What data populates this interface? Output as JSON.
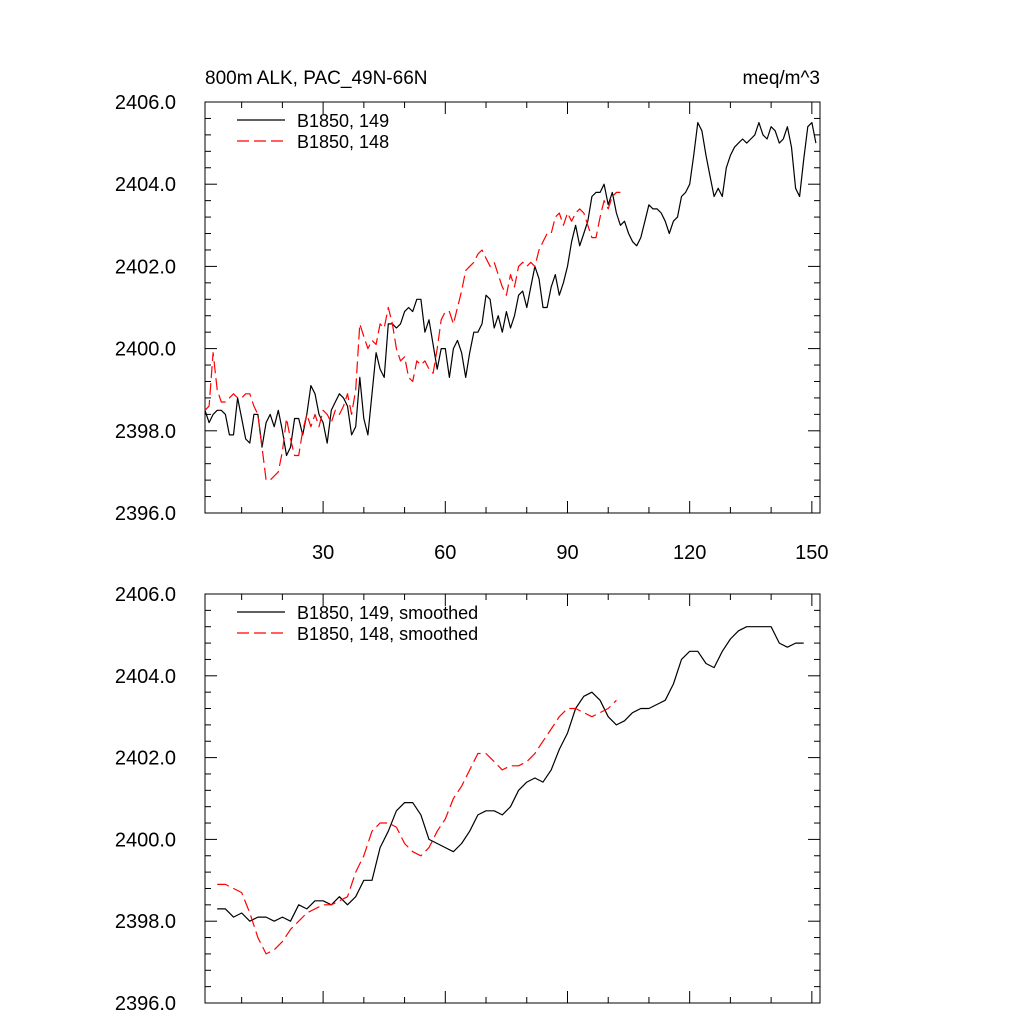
{
  "chart_data": [
    {
      "type": "line",
      "title": "800m ALK, PAC_49N-66N",
      "units": "meq/m^3",
      "xlim": [
        1,
        152
      ],
      "ylim": [
        2396.0,
        2406.0
      ],
      "xticks": [
        30,
        60,
        90,
        120,
        150
      ],
      "xtick_labels": [
        "30",
        "60",
        "90",
        "120",
        "150"
      ],
      "yticks": [
        2396,
        2398,
        2400,
        2402,
        2404,
        2406
      ],
      "ytick_labels": [
        "2396.0",
        "2398.0",
        "2400.0",
        "2402.0",
        "2404.0",
        "2406.0"
      ],
      "legend_position": "top-left",
      "series": [
        {
          "name": "B1850, 149",
          "color": "#000000",
          "dash": "solid",
          "x": [
            1,
            2,
            3,
            4,
            5,
            6,
            7,
            8,
            9,
            10,
            11,
            12,
            13,
            14,
            15,
            16,
            17,
            18,
            19,
            20,
            21,
            22,
            23,
            24,
            25,
            26,
            27,
            28,
            29,
            30,
            31,
            32,
            33,
            34,
            35,
            36,
            37,
            38,
            39,
            40,
            41,
            42,
            43,
            44,
            45,
            46,
            47,
            48,
            49,
            50,
            51,
            52,
            53,
            54,
            55,
            56,
            57,
            58,
            59,
            60,
            61,
            62,
            63,
            64,
            65,
            66,
            67,
            68,
            69,
            70,
            71,
            72,
            73,
            74,
            75,
            76,
            77,
            78,
            79,
            80,
            81,
            82,
            83,
            84,
            85,
            86,
            87,
            88,
            89,
            90,
            91,
            92,
            93,
            94,
            95,
            96,
            97,
            98,
            99,
            100,
            101,
            102,
            103,
            104,
            105,
            106,
            107,
            108,
            109,
            110,
            111,
            112,
            113,
            114,
            115,
            116,
            117,
            118,
            119,
            120,
            121,
            122,
            123,
            124,
            125,
            126,
            127,
            128,
            129,
            130,
            131,
            132,
            133,
            134,
            135,
            136,
            137,
            138,
            139,
            140,
            141,
            142,
            143,
            144,
            145,
            146,
            147,
            148,
            149,
            150,
            151
          ],
          "values": [
            2398.5,
            2398.2,
            2398.4,
            2398.5,
            2398.5,
            2398.4,
            2397.9,
            2397.9,
            2398.8,
            2398.3,
            2397.8,
            2397.7,
            2398.4,
            2398.4,
            2397.6,
            2398.2,
            2398.4,
            2398.1,
            2398.5,
            2398.0,
            2397.4,
            2397.6,
            2398.3,
            2398.3,
            2397.9,
            2398.4,
            2399.1,
            2398.9,
            2398.4,
            2398.2,
            2397.7,
            2398.5,
            2398.7,
            2398.9,
            2398.8,
            2398.6,
            2397.9,
            2398.1,
            2399.3,
            2398.3,
            2397.9,
            2398.9,
            2399.9,
            2399.5,
            2399.3,
            2400.6,
            2400.6,
            2400.5,
            2400.6,
            2400.9,
            2401.0,
            2400.9,
            2401.2,
            2401.2,
            2400.4,
            2400.7,
            2400.1,
            2399.5,
            2400.0,
            2400.0,
            2399.3,
            2400.0,
            2400.2,
            2399.9,
            2399.3,
            2399.9,
            2400.4,
            2400.4,
            2400.6,
            2401.3,
            2401.2,
            2400.5,
            2400.8,
            2400.4,
            2400.9,
            2400.5,
            2400.8,
            2401.3,
            2401.4,
            2401.0,
            2401.5,
            2402.0,
            2401.7,
            2401.0,
            2401.0,
            2401.5,
            2401.8,
            2401.3,
            2401.6,
            2402.0,
            2402.6,
            2403.0,
            2402.5,
            2402.8,
            2403.1,
            2403.7,
            2403.8,
            2403.8,
            2404.0,
            2403.5,
            2403.8,
            2403.3,
            2403.0,
            2403.1,
            2402.8,
            2402.6,
            2402.5,
            2402.7,
            2403.1,
            2403.5,
            2403.4,
            2403.4,
            2403.3,
            2403.1,
            2402.8,
            2403.1,
            2403.2,
            2403.7,
            2403.8,
            2404.0,
            2404.7,
            2405.5,
            2405.3,
            2404.7,
            2404.2,
            2403.7,
            2403.9,
            2403.7,
            2404.4,
            2404.7,
            2404.9,
            2405.0,
            2405.1,
            2405.0,
            2405.1,
            2405.2,
            2405.5,
            2405.2,
            2405.1,
            2405.4,
            2405.3,
            2405.0,
            2405.1,
            2405.4,
            2404.9,
            2403.9,
            2403.7,
            2404.6,
            2405.4,
            2405.5,
            2405.0
          ]
        },
        {
          "name": "B1850, 148",
          "color": "#ff0000",
          "dash": "dashed",
          "x": [
            1,
            2,
            3,
            4,
            5,
            6,
            7,
            8,
            9,
            10,
            11,
            12,
            13,
            14,
            15,
            16,
            17,
            18,
            19,
            20,
            21,
            22,
            23,
            24,
            25,
            26,
            27,
            28,
            29,
            30,
            31,
            32,
            33,
            34,
            35,
            36,
            37,
            38,
            39,
            40,
            41,
            42,
            43,
            44,
            45,
            46,
            47,
            48,
            49,
            50,
            51,
            52,
            53,
            54,
            55,
            56,
            57,
            58,
            59,
            60,
            61,
            62,
            63,
            64,
            65,
            66,
            67,
            68,
            69,
            70,
            71,
            72,
            73,
            74,
            75,
            76,
            77,
            78,
            79,
            80,
            81,
            82,
            83,
            84,
            85,
            86,
            87,
            88,
            89,
            90,
            91,
            92,
            93,
            94,
            95,
            96,
            97,
            98,
            99,
            100,
            101,
            102,
            103
          ],
          "values": [
            2398.5,
            2398.6,
            2399.9,
            2399.0,
            2398.7,
            2398.7,
            2398.8,
            2398.9,
            2398.8,
            2398.8,
            2398.9,
            2398.9,
            2398.6,
            2398.4,
            2397.6,
            2396.8,
            2396.8,
            2396.9,
            2397.0,
            2397.5,
            2398.3,
            2397.8,
            2397.4,
            2397.4,
            2398.0,
            2398.4,
            2398.1,
            2398.4,
            2398.1,
            2398.5,
            2398.4,
            2398.2,
            2398.5,
            2398.4,
            2398.6,
            2398.9,
            2398.4,
            2399.0,
            2400.6,
            2400.3,
            2400.0,
            2400.2,
            2400.1,
            2400.6,
            2400.5,
            2401.0,
            2400.6,
            2400.0,
            2399.7,
            2399.8,
            2399.3,
            2399.2,
            2399.7,
            2399.6,
            2399.7,
            2399.5,
            2399.4,
            2400.0,
            2400.7,
            2400.9,
            2400.9,
            2400.6,
            2401.0,
            2401.4,
            2401.9,
            2402.0,
            2402.1,
            2402.3,
            2402.4,
            2402.2,
            2402.0,
            2402.1,
            2401.8,
            2401.5,
            2401.3,
            2401.8,
            2401.5,
            2402.0,
            2402.1,
            2402.0,
            2402.1,
            2402.0,
            2402.4,
            2402.6,
            2402.8,
            2402.8,
            2403.2,
            2403.3,
            2403.0,
            2403.3,
            2403.1,
            2403.3,
            2403.4,
            2403.3,
            2403.0,
            2402.7,
            2402.7,
            2403.2,
            2403.6,
            2403.4,
            2403.7,
            2403.8,
            2403.8
          ]
        }
      ]
    },
    {
      "type": "line",
      "title": "",
      "xlim": [
        1,
        152
      ],
      "ylim": [
        2396.0,
        2406.0
      ],
      "xticks": [
        30,
        60,
        90,
        120,
        150
      ],
      "yticks": [
        2396,
        2398,
        2400,
        2402,
        2404,
        2406
      ],
      "ytick_labels": [
        "2396.0",
        "2398.0",
        "2400.0",
        "2402.0",
        "2404.0",
        "2406.0"
      ],
      "legend_position": "top-left",
      "series": [
        {
          "name": "B1850, 149, smoothed",
          "color": "#000000",
          "dash": "solid",
          "x": [
            4,
            6,
            8,
            10,
            12,
            14,
            16,
            18,
            20,
            22,
            24,
            26,
            28,
            30,
            32,
            34,
            36,
            38,
            40,
            42,
            44,
            46,
            48,
            50,
            52,
            54,
            56,
            58,
            60,
            62,
            64,
            66,
            68,
            70,
            72,
            74,
            76,
            78,
            80,
            82,
            84,
            86,
            88,
            90,
            92,
            94,
            96,
            98,
            100,
            102,
            104,
            106,
            108,
            110,
            112,
            114,
            116,
            118,
            120,
            122,
            124,
            126,
            128,
            130,
            132,
            134,
            136,
            138,
            140,
            142,
            144,
            146,
            148
          ],
          "values": [
            2398.3,
            2398.3,
            2398.1,
            2398.2,
            2398.0,
            2398.1,
            2398.1,
            2398.0,
            2398.1,
            2398.0,
            2398.4,
            2398.3,
            2398.5,
            2398.5,
            2398.4,
            2398.6,
            2398.4,
            2398.6,
            2399.0,
            2399.0,
            2399.8,
            2400.2,
            2400.7,
            2400.9,
            2400.9,
            2400.6,
            2400.0,
            2399.9,
            2399.8,
            2399.7,
            2399.9,
            2400.2,
            2400.6,
            2400.7,
            2400.7,
            2400.6,
            2400.8,
            2401.2,
            2401.4,
            2401.5,
            2401.4,
            2401.7,
            2402.2,
            2402.6,
            2403.2,
            2403.5,
            2403.6,
            2403.4,
            2403.0,
            2402.8,
            2402.9,
            2403.1,
            2403.2,
            2403.2,
            2403.3,
            2403.4,
            2403.8,
            2404.4,
            2404.6,
            2404.6,
            2404.3,
            2404.2,
            2404.6,
            2404.9,
            2405.1,
            2405.2,
            2405.2,
            2405.2,
            2405.2,
            2404.8,
            2404.7,
            2404.8,
            2404.8
          ]
        },
        {
          "name": "B1850, 148, smoothed",
          "color": "#ff0000",
          "dash": "dashed",
          "x": [
            4,
            6,
            8,
            10,
            12,
            14,
            16,
            18,
            20,
            22,
            24,
            26,
            28,
            30,
            32,
            34,
            36,
            38,
            40,
            42,
            44,
            46,
            48,
            50,
            52,
            54,
            56,
            58,
            60,
            62,
            64,
            66,
            68,
            70,
            72,
            74,
            76,
            78,
            80,
            82,
            84,
            86,
            88,
            90,
            92,
            94,
            96,
            98,
            100,
            102
          ],
          "values": [
            2398.9,
            2398.9,
            2398.8,
            2398.7,
            2398.2,
            2397.6,
            2397.2,
            2397.3,
            2397.5,
            2397.8,
            2398.0,
            2398.2,
            2398.3,
            2398.4,
            2398.4,
            2398.5,
            2398.6,
            2399.2,
            2399.6,
            2400.2,
            2400.4,
            2400.4,
            2400.3,
            2399.9,
            2399.7,
            2399.6,
            2399.8,
            2400.2,
            2400.5,
            2401.0,
            2401.3,
            2401.7,
            2402.1,
            2402.1,
            2401.9,
            2401.7,
            2401.8,
            2401.8,
            2401.9,
            2402.1,
            2402.4,
            2402.7,
            2403.0,
            2403.2,
            2403.2,
            2403.1,
            2403.0,
            2403.1,
            2403.2,
            2403.4
          ]
        }
      ]
    }
  ]
}
